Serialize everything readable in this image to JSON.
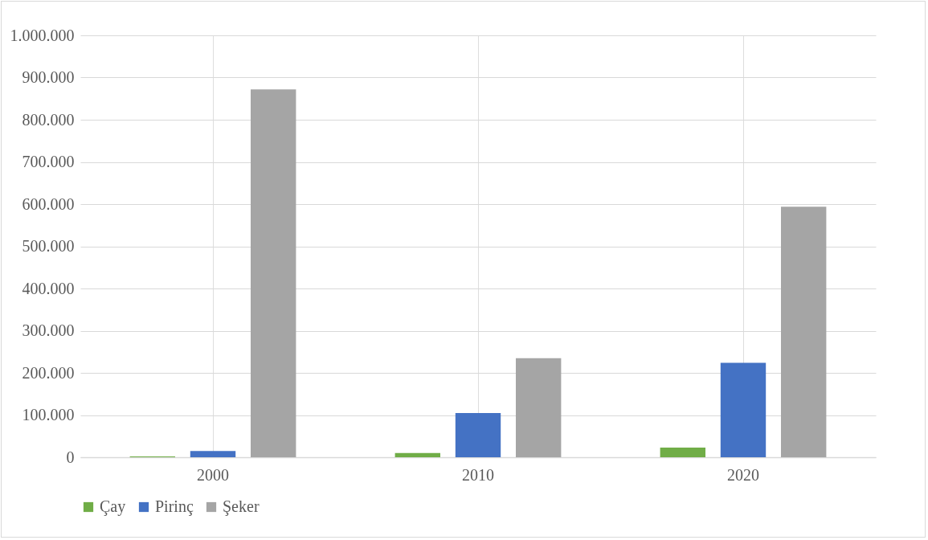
{
  "chart_data": {
    "type": "bar",
    "categories": [
      "2000",
      "2010",
      "2020"
    ],
    "series": [
      {
        "name": "Çay",
        "color": "#70ad47",
        "values": [
          2000,
          10000,
          23000
        ]
      },
      {
        "name": "Pirinç",
        "color": "#4472c4",
        "values": [
          15000,
          105000,
          224000
        ]
      },
      {
        "name": "Şeker",
        "color": "#a5a5a5",
        "values": [
          872000,
          235000,
          594000
        ]
      }
    ],
    "ylim": [
      0,
      1000000
    ],
    "yticks": [
      0,
      {
        "value": 100000,
        "label": "100.000"
      },
      {
        "value": 200000,
        "label": "200.000"
      },
      {
        "value": 300000,
        "label": "300.000"
      },
      {
        "value": 400000,
        "label": "400.000"
      },
      {
        "value": 500000,
        "label": "500.000"
      },
      {
        "value": 600000,
        "label": "600.000"
      },
      {
        "value": 700000,
        "label": "700.000"
      },
      {
        "value": 800000,
        "label": "800.000"
      },
      {
        "value": 900000,
        "label": "900.000"
      },
      {
        "value": 1000000,
        "label": "1.000.000"
      }
    ],
    "grid": true,
    "legend": "bottom"
  }
}
